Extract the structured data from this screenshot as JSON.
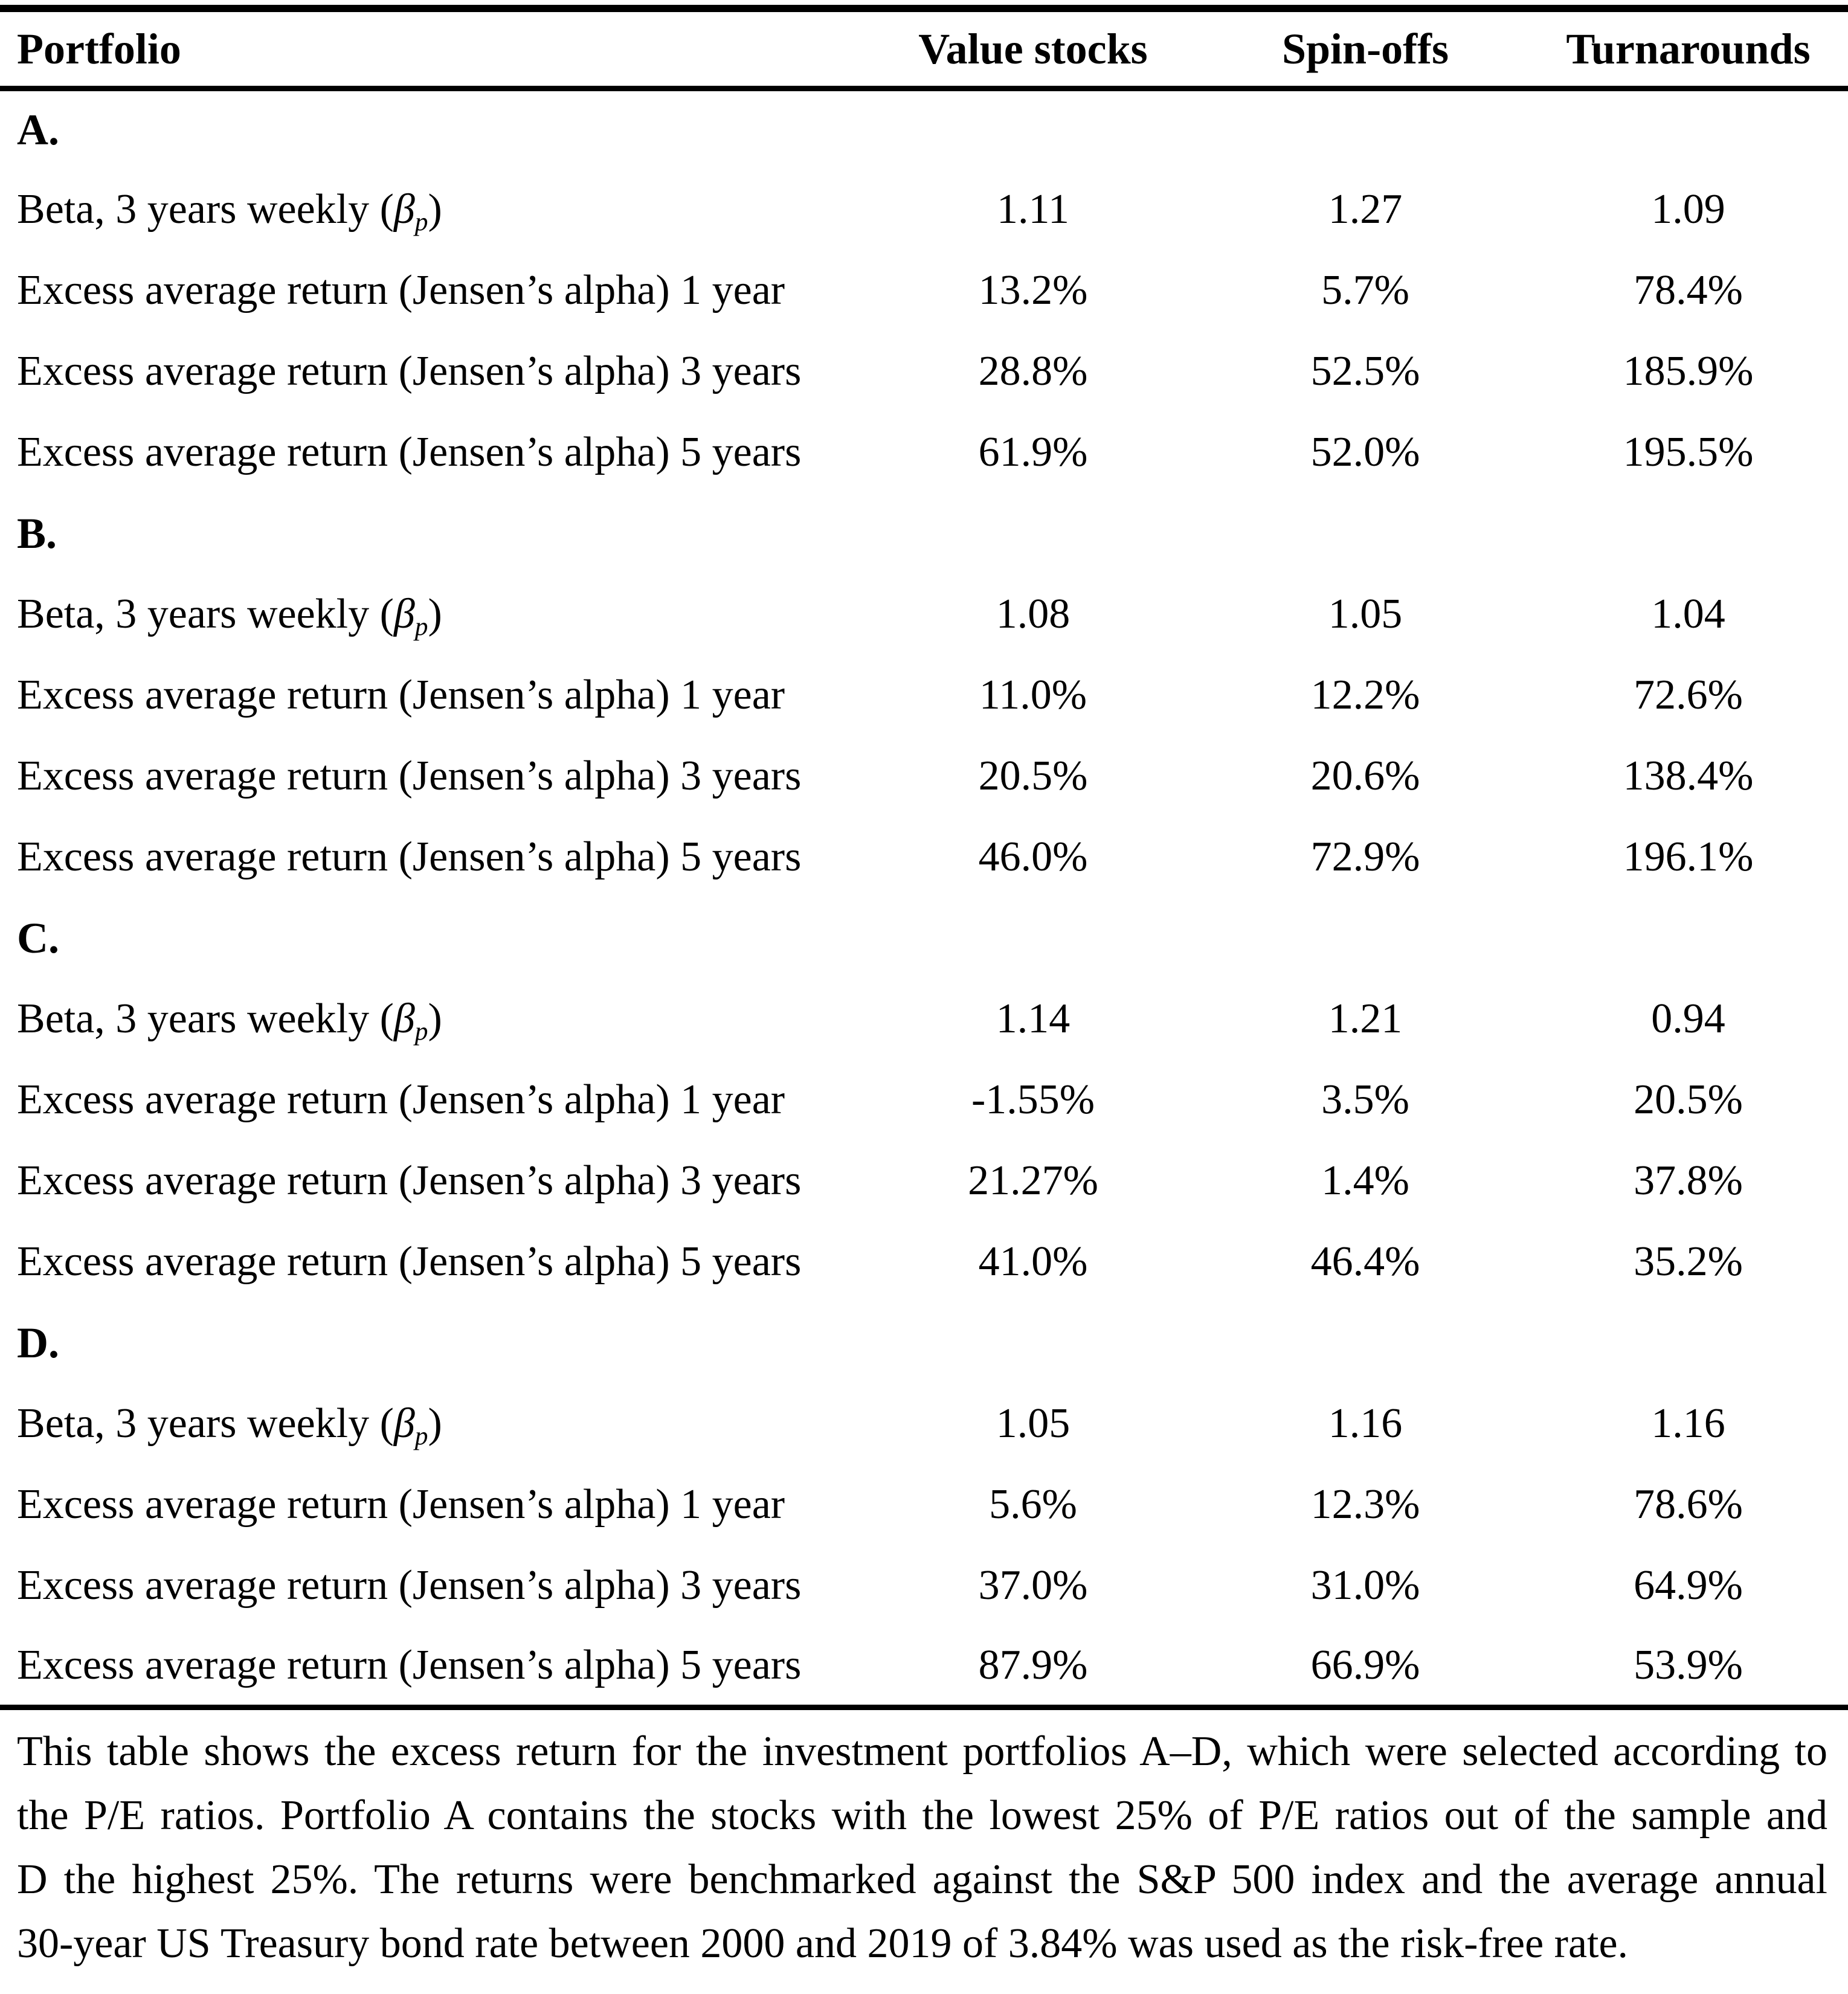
{
  "header": {
    "portfolio": "Portfolio",
    "value_stocks": "Value stocks",
    "spin_offs": "Spin-offs",
    "turnarounds": "Turnarounds"
  },
  "labels": {
    "beta_prefix": "Beta, 3 years weekly (",
    "beta_symbol": "β",
    "beta_subscript": "p",
    "beta_suffix": ")",
    "alpha_1y": "Excess average return (Jensen’s alpha) 1 year",
    "alpha_3y": "Excess average return (Jensen’s alpha) 3 years",
    "alpha_5y": "Excess average return (Jensen’s alpha) 5 years"
  },
  "sections": {
    "a": {
      "label": "A.",
      "beta": {
        "value_stocks": "1.11",
        "spin_offs": "1.27",
        "turnarounds": "1.09"
      },
      "alpha_1y": {
        "value_stocks": "13.2%",
        "spin_offs": "5.7%",
        "turnarounds": "78.4%"
      },
      "alpha_3y": {
        "value_stocks": "28.8%",
        "spin_offs": "52.5%",
        "turnarounds": "185.9%"
      },
      "alpha_5y": {
        "value_stocks": "61.9%",
        "spin_offs": "52.0%",
        "turnarounds": "195.5%"
      }
    },
    "b": {
      "label": "B.",
      "beta": {
        "value_stocks": "1.08",
        "spin_offs": "1.05",
        "turnarounds": "1.04"
      },
      "alpha_1y": {
        "value_stocks": "11.0%",
        "spin_offs": "12.2%",
        "turnarounds": "72.6%"
      },
      "alpha_3y": {
        "value_stocks": "20.5%",
        "spin_offs": "20.6%",
        "turnarounds": "138.4%"
      },
      "alpha_5y": {
        "value_stocks": "46.0%",
        "spin_offs": "72.9%",
        "turnarounds": "196.1%"
      }
    },
    "c": {
      "label": "C.",
      "beta": {
        "value_stocks": "1.14",
        "spin_offs": "1.21",
        "turnarounds": "0.94"
      },
      "alpha_1y": {
        "value_stocks": "-1.55%",
        "spin_offs": "3.5%",
        "turnarounds": "20.5%"
      },
      "alpha_3y": {
        "value_stocks": "21.27%",
        "spin_offs": "1.4%",
        "turnarounds": "37.8%"
      },
      "alpha_5y": {
        "value_stocks": "41.0%",
        "spin_offs": "46.4%",
        "turnarounds": "35.2%"
      }
    },
    "d": {
      "label": "D.",
      "beta": {
        "value_stocks": "1.05",
        "spin_offs": "1.16",
        "turnarounds": "1.16"
      },
      "alpha_1y": {
        "value_stocks": "5.6%",
        "spin_offs": "12.3%",
        "turnarounds": "78.6%"
      },
      "alpha_3y": {
        "value_stocks": "37.0%",
        "spin_offs": "31.0%",
        "turnarounds": "64.9%"
      },
      "alpha_5y": {
        "value_stocks": "87.9%",
        "spin_offs": "66.9%",
        "turnarounds": "53.9%"
      }
    }
  },
  "footnote": {
    "line_1": "This table shows the excess return for the investment portfolios A–D, which were selected according to",
    "line_2": "the P/E ratios. Portfolio A contains the stocks with the lowest 25% of P/E ratios out of the sample and",
    "line_3": "D the highest 25%. The returns were benchmarked against the S&P 500 index and the average annual",
    "line_4": "30-year US Treasury bond rate between 2000 and 2019 of 3.84% was used as the risk-free rate."
  }
}
